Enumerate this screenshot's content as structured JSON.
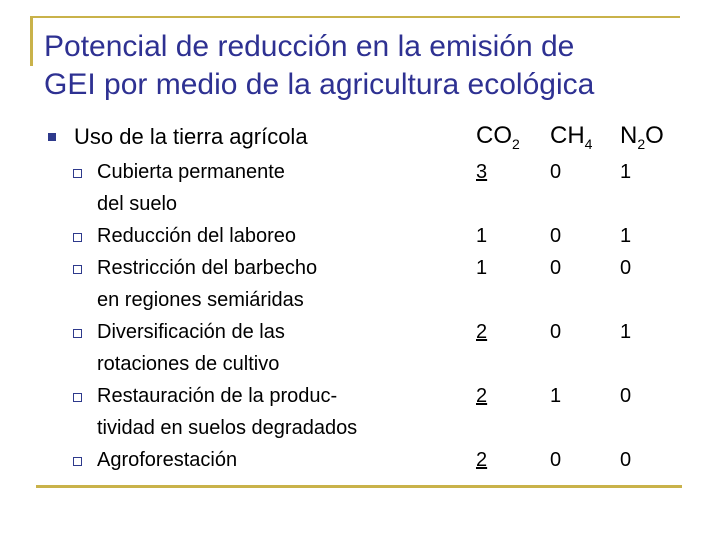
{
  "slide": {
    "title_line1": "Potencial de reducción en la emisión de",
    "title_line2": "GEI por medio de la agricultura ecológica",
    "heading": "Uso de la tierra agrícola",
    "columns": [
      {
        "base": "CO",
        "sub": "2"
      },
      {
        "base": "CH",
        "sub": "4"
      },
      {
        "base": "N",
        "sub": "2",
        "tail": "O"
      }
    ],
    "rows": [
      {
        "lines": [
          "Cubierta permanente",
          "del suelo"
        ],
        "co2": "3",
        "ch4": "0",
        "n2o": "1",
        "co2_underlined": true
      },
      {
        "lines": [
          "Reducción del laboreo"
        ],
        "co2": "1",
        "ch4": "0",
        "n2o": "1",
        "co2_underlined": false
      },
      {
        "lines": [
          "Restricción del barbecho",
          "en regiones semiáridas"
        ],
        "co2": "1",
        "ch4": "0",
        "n2o": "0",
        "co2_underlined": false
      },
      {
        "lines": [
          "Diversificación de las",
          "rotaciones de cultivo"
        ],
        "co2": "2",
        "ch4": "0",
        "n2o": "1",
        "co2_underlined": true
      },
      {
        "lines": [
          "Restauración de la produc-",
          "tividad en suelos degradados"
        ],
        "co2": "2",
        "ch4": "1",
        "n2o": "0",
        "co2_underlined": true
      },
      {
        "lines": [
          "Agroforestación"
        ],
        "co2": "2",
        "ch4": "0",
        "n2o": "0",
        "co2_underlined": true
      }
    ]
  }
}
